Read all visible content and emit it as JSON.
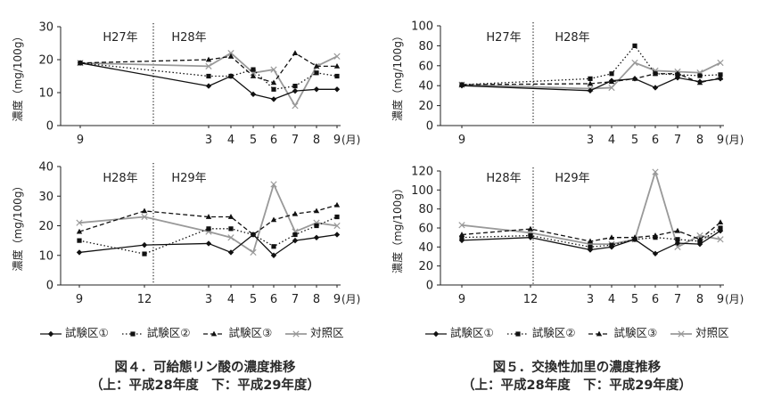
{
  "series_style": {
    "試験区①": {
      "color": "#111111",
      "dash": "",
      "width": 1.3,
      "marker": "diamond"
    },
    "試験区②": {
      "color": "#111111",
      "dash": "1.5,2.5",
      "width": 1.3,
      "marker": "square"
    },
    "試験区③": {
      "color": "#111111",
      "dash": "5,3",
      "width": 1.3,
      "marker": "triangle"
    },
    "対照区": {
      "color": "#999999",
      "dash": "",
      "width": 1.8,
      "marker": "x"
    }
  },
  "chart_data": [
    {
      "type": "line",
      "ylabel": "濃度（mg/100g）",
      "ylim": [
        0,
        30
      ],
      "yticks": [
        0,
        10,
        20,
        30
      ],
      "x": [
        "9",
        "3",
        "4",
        "5",
        "6",
        "7",
        "8",
        "9"
      ],
      "x_unit": "(月)",
      "year_labels": [
        "H27年",
        "H28年"
      ],
      "divider_after_index": 0,
      "series": [
        {
          "name": "試験区①",
          "values": [
            19,
            12,
            15,
            9.5,
            8,
            10.5,
            11,
            11
          ]
        },
        {
          "name": "試験区②",
          "values": [
            19,
            15,
            15,
            17,
            11,
            12,
            16,
            15
          ]
        },
        {
          "name": "試験区③",
          "values": [
            19,
            20,
            21,
            15,
            13,
            22,
            18,
            18
          ]
        },
        {
          "name": "対照区",
          "values": [
            19,
            18,
            22,
            16,
            17,
            6,
            18,
            21
          ]
        }
      ]
    },
    {
      "type": "line",
      "ylabel": "濃度（mg/100g）",
      "ylim": [
        0,
        100
      ],
      "yticks": [
        0,
        20,
        40,
        60,
        80,
        100
      ],
      "x": [
        "9",
        "3",
        "4",
        "5",
        "6",
        "7",
        "8",
        "9"
      ],
      "x_unit": "(月)",
      "year_labels": [
        "H27年",
        "H28年"
      ],
      "divider_after_index": 0,
      "series": [
        {
          "name": "試験区①",
          "values": [
            40,
            35,
            45,
            47,
            38,
            48,
            44,
            47
          ]
        },
        {
          "name": "試験区②",
          "values": [
            41,
            47,
            52,
            80,
            52,
            51,
            50,
            51
          ]
        },
        {
          "name": "試験区③",
          "values": [
            41,
            42,
            44,
            47,
            52,
            52,
            43,
            48
          ]
        },
        {
          "name": "対照区",
          "values": [
            41,
            37,
            38,
            63,
            55,
            54,
            53,
            63
          ]
        }
      ]
    },
    {
      "type": "line",
      "ylabel": "濃度（mg/100g）",
      "ylim": [
        0,
        40
      ],
      "yticks": [
        0,
        10,
        20,
        30,
        40
      ],
      "x": [
        "9",
        "12",
        "3",
        "4",
        "5",
        "6",
        "7",
        "8",
        "9"
      ],
      "x_unit": "(月)",
      "year_labels": [
        "H28年",
        "H29年"
      ],
      "divider_after_index": 1,
      "series": [
        {
          "name": "試験区①",
          "values": [
            11,
            13.5,
            14,
            11,
            17,
            10,
            15,
            16,
            17
          ]
        },
        {
          "name": "試験区②",
          "values": [
            15,
            10.5,
            19,
            19,
            17,
            13,
            17,
            20,
            23
          ]
        },
        {
          "name": "試験区③",
          "values": [
            18,
            25,
            23,
            23,
            17,
            22,
            24,
            25,
            27
          ]
        },
        {
          "name": "対照区",
          "values": [
            21,
            23,
            18,
            16,
            11,
            34,
            18,
            21,
            20
          ]
        }
      ]
    },
    {
      "type": "line",
      "ylabel": "濃度（mg/100g）",
      "ylim": [
        0,
        120
      ],
      "yticks": [
        0,
        20,
        40,
        60,
        80,
        100,
        120
      ],
      "x": [
        "9",
        "12",
        "3",
        "4",
        "5",
        "6",
        "7",
        "8",
        "9"
      ],
      "x_unit": "(月)",
      "year_labels": [
        "H28年",
        "H29年"
      ],
      "divider_after_index": 1,
      "series": [
        {
          "name": "試験区①",
          "values": [
            47,
            50,
            37,
            40,
            48,
            33,
            44,
            43,
            57
          ]
        },
        {
          "name": "試験区②",
          "values": [
            50,
            52,
            40,
            42,
            48,
            50,
            48,
            46,
            60
          ]
        },
        {
          "name": "試験区③",
          "values": [
            53,
            59,
            46,
            50,
            50,
            52,
            57,
            48,
            66
          ]
        },
        {
          "name": "対照区",
          "values": [
            63,
            55,
            43,
            43,
            48,
            119,
            40,
            52,
            48
          ]
        }
      ]
    }
  ],
  "legends": [
    [
      "試験区①",
      "試験区②",
      "試験区③",
      "対照区"
    ],
    [
      "試験区①",
      "試験区②",
      "試験区③",
      "対照区"
    ]
  ],
  "captions": [
    {
      "line1": "図４．可給態リン酸の濃度推移",
      "line2": "（上：平成28年度　下：平成29年度）"
    },
    {
      "line1": "図５．交換性加里の濃度推移",
      "line2": "（上：平成28年度　下：平成29年度）"
    }
  ]
}
